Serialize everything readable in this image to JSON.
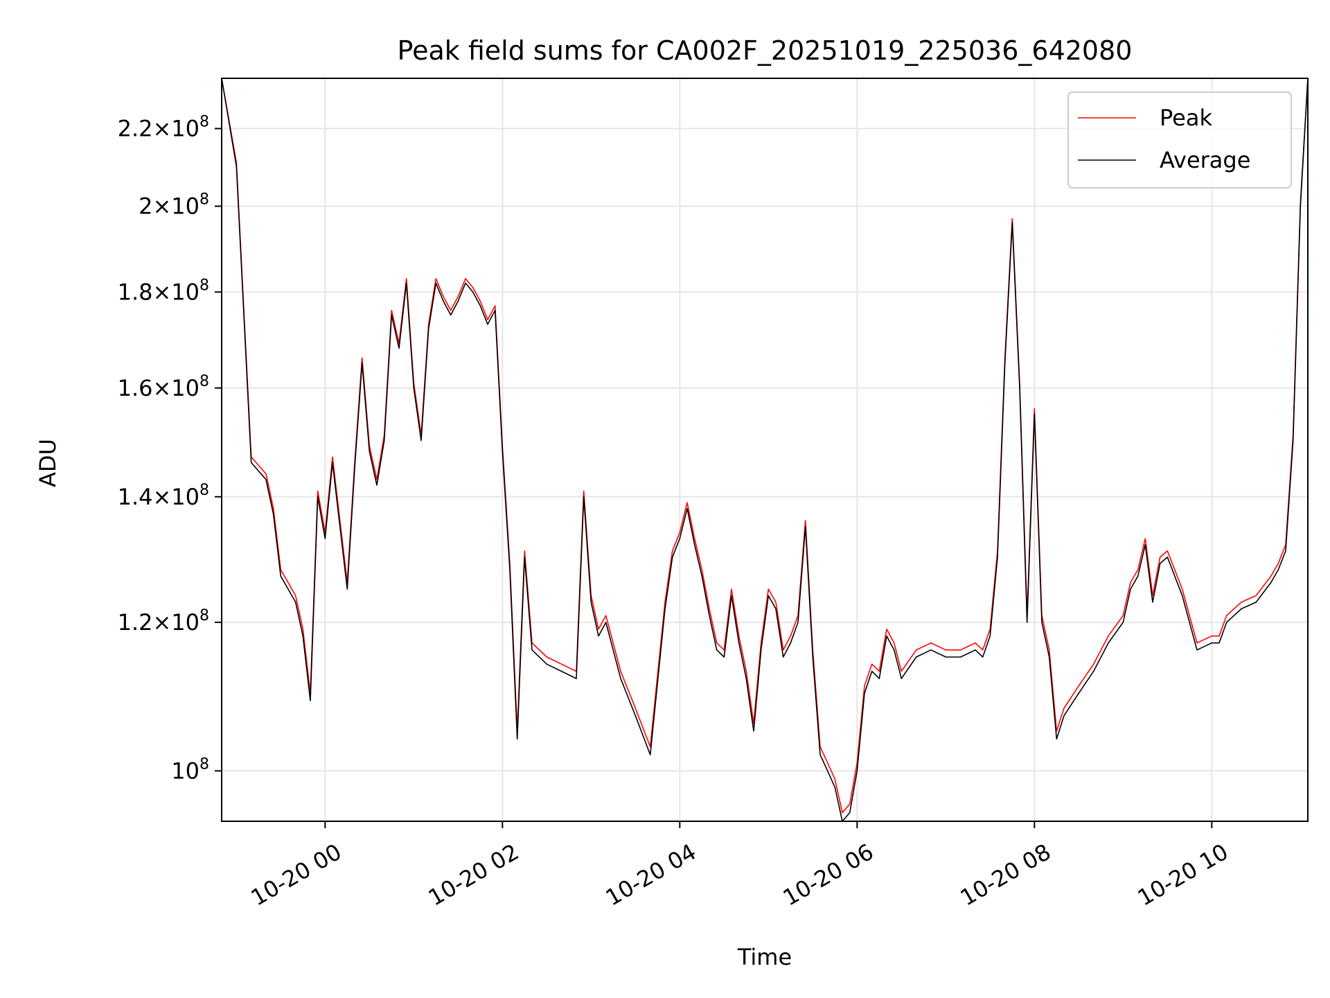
{
  "chart_data": {
    "type": "line",
    "title": "Peak field sums for CA002F_20251019_225036_642080",
    "xlabel": "Time",
    "ylabel": "ADU",
    "x_axis_kind": "datetime",
    "y_scale": "log",
    "xlim": [
      "2025-10-19 22:50",
      "2025-10-20 11:05"
    ],
    "ylim": [
      94000000,
      234000000
    ],
    "grid": true,
    "legend": {
      "position": "upper right",
      "entries": [
        "Peak",
        "Average"
      ]
    },
    "colors": {
      "Peak": "#ff0000",
      "Average": "#000000"
    },
    "x_ticks": [
      {
        "value": "2025-10-20 00:00",
        "label": "10-20 00"
      },
      {
        "value": "2025-10-20 02:00",
        "label": "10-20 02"
      },
      {
        "value": "2025-10-20 04:00",
        "label": "10-20 04"
      },
      {
        "value": "2025-10-20 06:00",
        "label": "10-20 06"
      },
      {
        "value": "2025-10-20 08:00",
        "label": "10-20 08"
      },
      {
        "value": "2025-10-20 10:00",
        "label": "10-20 10"
      }
    ],
    "y_ticks": [
      {
        "value": 100000000,
        "mantissa": "",
        "exp": "8"
      },
      {
        "value": 120000000,
        "mantissa": "1.2",
        "exp": "8"
      },
      {
        "value": 140000000,
        "mantissa": "1.4",
        "exp": "8"
      },
      {
        "value": 160000000,
        "mantissa": "1.6",
        "exp": "8"
      },
      {
        "value": 180000000,
        "mantissa": "1.8",
        "exp": "8"
      },
      {
        "value": 200000000,
        "mantissa": "2",
        "exp": "8"
      },
      {
        "value": 220000000,
        "mantissa": "2.2",
        "exp": "8"
      }
    ],
    "x": [
      "2025-10-19 22:50",
      "2025-10-19 23:00",
      "2025-10-19 23:10",
      "2025-10-19 23:20",
      "2025-10-19 23:25",
      "2025-10-19 23:30",
      "2025-10-19 23:35",
      "2025-10-19 23:40",
      "2025-10-19 23:45",
      "2025-10-19 23:50",
      "2025-10-19 23:55",
      "2025-10-20 00:00",
      "2025-10-20 00:05",
      "2025-10-20 00:10",
      "2025-10-20 00:15",
      "2025-10-20 00:20",
      "2025-10-20 00:25",
      "2025-10-20 00:30",
      "2025-10-20 00:35",
      "2025-10-20 00:40",
      "2025-10-20 00:45",
      "2025-10-20 00:50",
      "2025-10-20 00:55",
      "2025-10-20 01:00",
      "2025-10-20 01:05",
      "2025-10-20 01:10",
      "2025-10-20 01:15",
      "2025-10-20 01:20",
      "2025-10-20 01:25",
      "2025-10-20 01:30",
      "2025-10-20 01:35",
      "2025-10-20 01:40",
      "2025-10-20 01:45",
      "2025-10-20 01:50",
      "2025-10-20 01:55",
      "2025-10-20 02:00",
      "2025-10-20 02:05",
      "2025-10-20 02:10",
      "2025-10-20 02:15",
      "2025-10-20 02:20",
      "2025-10-20 02:30",
      "2025-10-20 02:40",
      "2025-10-20 02:50",
      "2025-10-20 02:55",
      "2025-10-20 03:00",
      "2025-10-20 03:05",
      "2025-10-20 03:10",
      "2025-10-20 03:20",
      "2025-10-20 03:30",
      "2025-10-20 03:40",
      "2025-10-20 03:50",
      "2025-10-20 03:55",
      "2025-10-20 04:00",
      "2025-10-20 04:05",
      "2025-10-20 04:10",
      "2025-10-20 04:15",
      "2025-10-20 04:20",
      "2025-10-20 04:25",
      "2025-10-20 04:30",
      "2025-10-20 04:35",
      "2025-10-20 04:40",
      "2025-10-20 04:45",
      "2025-10-20 04:50",
      "2025-10-20 04:55",
      "2025-10-20 05:00",
      "2025-10-20 05:05",
      "2025-10-20 05:10",
      "2025-10-20 05:15",
      "2025-10-20 05:20",
      "2025-10-20 05:25",
      "2025-10-20 05:30",
      "2025-10-20 05:35",
      "2025-10-20 05:40",
      "2025-10-20 05:45",
      "2025-10-20 05:50",
      "2025-10-20 05:55",
      "2025-10-20 06:00",
      "2025-10-20 06:05",
      "2025-10-20 06:10",
      "2025-10-20 06:15",
      "2025-10-20 06:20",
      "2025-10-20 06:25",
      "2025-10-20 06:30",
      "2025-10-20 06:40",
      "2025-10-20 06:50",
      "2025-10-20 07:00",
      "2025-10-20 07:10",
      "2025-10-20 07:20",
      "2025-10-20 07:25",
      "2025-10-20 07:30",
      "2025-10-20 07:35",
      "2025-10-20 07:40",
      "2025-10-20 07:45",
      "2025-10-20 07:50",
      "2025-10-20 07:55",
      "2025-10-20 08:00",
      "2025-10-20 08:05",
      "2025-10-20 08:10",
      "2025-10-20 08:15",
      "2025-10-20 08:20",
      "2025-10-20 08:30",
      "2025-10-20 08:40",
      "2025-10-20 08:50",
      "2025-10-20 09:00",
      "2025-10-20 09:05",
      "2025-10-20 09:10",
      "2025-10-20 09:15",
      "2025-10-20 09:20",
      "2025-10-20 09:25",
      "2025-10-20 09:30",
      "2025-10-20 09:40",
      "2025-10-20 09:50",
      "2025-10-20 10:00",
      "2025-10-20 10:05",
      "2025-10-20 10:10",
      "2025-10-20 10:20",
      "2025-10-20 10:30",
      "2025-10-20 10:40",
      "2025-10-20 10:45",
      "2025-10-20 10:50",
      "2025-10-20 10:55",
      "2025-10-20 11:00",
      "2025-10-20 11:05"
    ],
    "series": [
      {
        "name": "Average",
        "values": [
          234000000,
          210000000,
          146000000,
          143000000,
          137000000,
          127000000,
          125000000,
          123000000,
          118000000,
          109000000,
          140000000,
          133000000,
          146000000,
          135000000,
          125000000,
          145000000,
          165000000,
          148000000,
          142000000,
          150000000,
          175000000,
          168000000,
          182000000,
          160000000,
          150000000,
          172000000,
          182000000,
          178000000,
          175000000,
          178000000,
          182000000,
          180000000,
          177000000,
          173000000,
          176000000,
          148000000,
          128000000,
          104000000,
          130000000,
          116000000,
          114000000,
          113000000,
          112000000,
          140000000,
          123000000,
          118000000,
          120000000,
          112000000,
          107000000,
          102000000,
          122000000,
          130000000,
          133000000,
          138000000,
          132000000,
          127000000,
          121000000,
          116000000,
          115000000,
          124000000,
          117000000,
          112000000,
          105000000,
          116000000,
          124000000,
          122000000,
          115000000,
          117000000,
          120000000,
          135000000,
          115000000,
          102000000,
          100000000,
          98000000,
          94000000,
          95000000,
          100000000,
          110000000,
          113000000,
          112000000,
          118000000,
          116000000,
          112000000,
          115000000,
          116000000,
          115000000,
          115000000,
          116000000,
          115000000,
          118000000,
          130000000,
          165000000,
          196000000,
          160000000,
          120000000,
          155000000,
          120000000,
          115000000,
          104000000,
          107000000,
          110000000,
          113000000,
          117000000,
          120000000,
          125000000,
          127000000,
          132000000,
          123000000,
          129000000,
          130000000,
          124000000,
          116000000,
          117000000,
          117000000,
          120000000,
          122000000,
          123000000,
          126000000,
          128000000,
          131000000,
          150000000,
          200000000,
          234000000
        ]
      },
      {
        "name": "Peak",
        "values": [
          234000000,
          211000000,
          147000000,
          144000000,
          138000000,
          128000000,
          126000000,
          124000000,
          119000000,
          110000000,
          141000000,
          134000000,
          147000000,
          136000000,
          126000000,
          146000000,
          166000000,
          149000000,
          143000000,
          151000000,
          176000000,
          169000000,
          183000000,
          161000000,
          151000000,
          173000000,
          183000000,
          179000000,
          176000000,
          179000000,
          183000000,
          181000000,
          178000000,
          174000000,
          177000000,
          149000000,
          129000000,
          105000000,
          131000000,
          117000000,
          115000000,
          114000000,
          113000000,
          141000000,
          124000000,
          119000000,
          121000000,
          113000000,
          108000000,
          103000000,
          123000000,
          131000000,
          134000000,
          139000000,
          133000000,
          128000000,
          122000000,
          117000000,
          116000000,
          125000000,
          118000000,
          113000000,
          106000000,
          117000000,
          125000000,
          123000000,
          116000000,
          118000000,
          121000000,
          136000000,
          116000000,
          103000000,
          101000000,
          99000000,
          95000000,
          96000000,
          101000000,
          111000000,
          114000000,
          113000000,
          119000000,
          117000000,
          113000000,
          116000000,
          117000000,
          116000000,
          116000000,
          117000000,
          116000000,
          119000000,
          131000000,
          166000000,
          197000000,
          161000000,
          121000000,
          156000000,
          121000000,
          116000000,
          105000000,
          108000000,
          111000000,
          114000000,
          118000000,
          121000000,
          126000000,
          128000000,
          133000000,
          124000000,
          130000000,
          131000000,
          125000000,
          117000000,
          118000000,
          118000000,
          121000000,
          123000000,
          124000000,
          127000000,
          129000000,
          132000000,
          151000000,
          201000000,
          234000000
        ]
      }
    ]
  }
}
